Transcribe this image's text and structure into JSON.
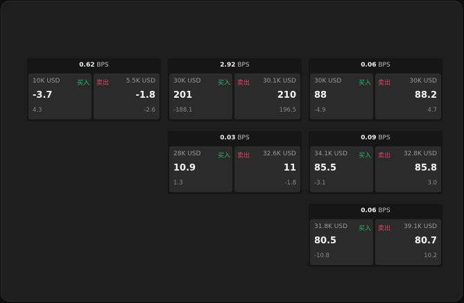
{
  "labels": {
    "bps": "BPS",
    "buy": "买入",
    "sell": "卖出"
  },
  "colors": {
    "buy": "#2fb36a",
    "sell": "#e0436b",
    "background": "#1e1e1e"
  },
  "panels": [
    {
      "bps": "0.62",
      "bid": {
        "qty": "10K USD",
        "price": "-3.7",
        "change": "4.3"
      },
      "ask": {
        "qty": "5.5K USD",
        "price": "-1.8",
        "change": "-2.6"
      }
    },
    {
      "bps": "2.92",
      "bid": {
        "qty": "30K USD",
        "price": "201",
        "change": "-188.1"
      },
      "ask": {
        "qty": "30.1K USD",
        "price": "210",
        "change": "196.5"
      }
    },
    {
      "bps": "0.06",
      "bid": {
        "qty": "30K USD",
        "price": "88",
        "change": "-4.9"
      },
      "ask": {
        "qty": "30K USD",
        "price": "88.2",
        "change": "4.7"
      }
    },
    {
      "bps": "0.03",
      "bid": {
        "qty": "28K USD",
        "price": "10.9",
        "change": "1.3"
      },
      "ask": {
        "qty": "32.6K USD",
        "price": "11",
        "change": "-1.8"
      }
    },
    {
      "bps": "0.09",
      "bid": {
        "qty": "34.1K USD",
        "price": "85.5",
        "change": "-3.1"
      },
      "ask": {
        "qty": "32.8K USD",
        "price": "85.8",
        "change": "3.0"
      }
    },
    {
      "bps": "0.06",
      "bid": {
        "qty": "31.8K USD",
        "price": "80.5",
        "change": "-10.8"
      },
      "ask": {
        "qty": "39.1K USD",
        "price": "80.7",
        "change": "10.2"
      }
    }
  ]
}
